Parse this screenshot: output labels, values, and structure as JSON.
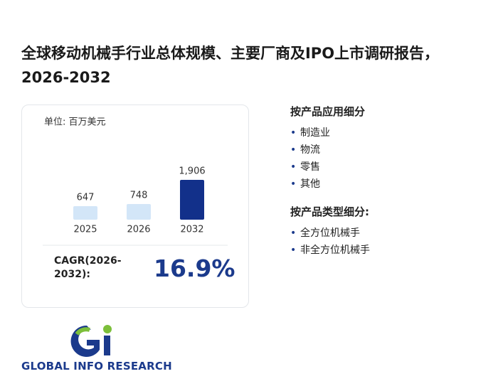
{
  "header": {
    "title": "全球移动机械手行业总体规模、主要厂商及IPO上市调研报告，2026-2032"
  },
  "chart_data": {
    "type": "bar",
    "unit": "单位: 百万美元",
    "categories": [
      "2025",
      "2026",
      "2032"
    ],
    "values": [
      647,
      748,
      1906
    ],
    "value_labels": [
      "647",
      "748",
      "1,906"
    ],
    "colors": [
      "#d3e6f8",
      "#d3e6f8",
      "#12308a"
    ]
  },
  "cagr": {
    "label": "CAGR(2026-2032):",
    "value": "16.9%"
  },
  "segments": [
    {
      "title": "按产品应用细分",
      "items": [
        "制造业",
        "物流",
        "零售",
        "其他"
      ]
    },
    {
      "title": "按产品类型细分:",
      "items": [
        "全方位机械手",
        "非全方位机械手"
      ]
    }
  ],
  "logo": {
    "text": "GLOBAL INFO RESEARCH"
  }
}
